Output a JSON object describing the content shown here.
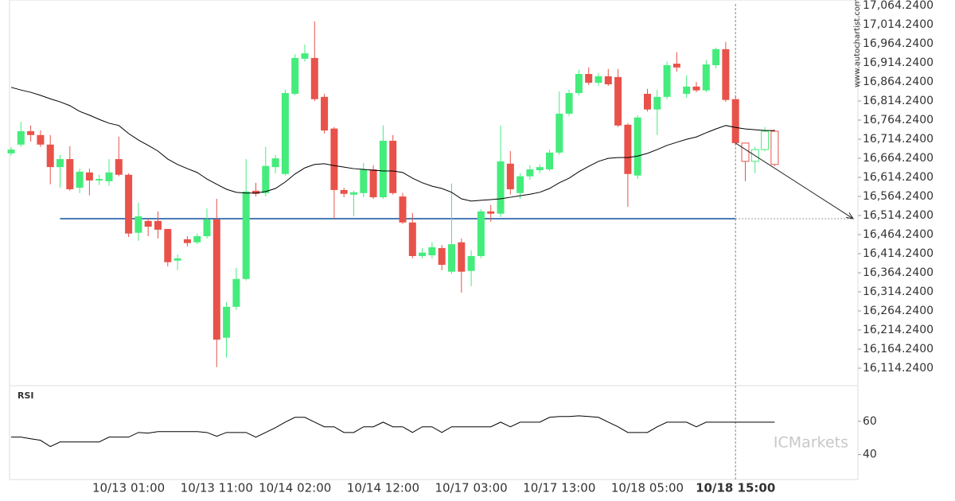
{
  "chart_data": [
    {
      "type": "candlestick",
      "watermark": "www.autochartist.com",
      "categories": [
        null,
        null,
        null,
        null,
        null,
        null,
        null,
        null,
        null,
        null,
        null,
        null,
        "10/13 01:00",
        null,
        null,
        null,
        null,
        null,
        null,
        null,
        null,
        "10/13 11:00",
        null,
        null,
        null,
        null,
        null,
        null,
        null,
        "10/14 02:00",
        null,
        null,
        null,
        null,
        null,
        null,
        null,
        null,
        "10/14 12:00",
        null,
        null,
        null,
        null,
        null,
        null,
        null,
        null,
        "10/17 03:00",
        null,
        null,
        null,
        null,
        null,
        null,
        null,
        null,
        "10/17 13:00",
        null,
        null,
        null,
        null,
        null,
        null,
        null,
        null,
        "10/18 05:00",
        null,
        null,
        null,
        null,
        null,
        null,
        null,
        null,
        "10/18 15:00",
        null,
        null,
        null,
        null
      ],
      "open": [
        16677,
        16700,
        16735,
        16725,
        16700,
        16641,
        16662,
        16587,
        16627,
        16606,
        16604,
        16662,
        16621,
        16469,
        16500,
        16500,
        16479,
        16396,
        16452,
        16444,
        16460,
        16504,
        16194,
        16275,
        16348,
        16579,
        16573,
        16641,
        16623,
        16833,
        16925,
        16927,
        16825,
        16742,
        16581,
        16569,
        16573,
        16635,
        16562,
        16710,
        16564,
        16496,
        16408,
        16410,
        16429,
        16367,
        16444,
        16369,
        16408,
        16525,
        16519,
        16650,
        16573,
        16617,
        16633,
        16635,
        16679,
        16781,
        16835,
        16885,
        16862,
        16879,
        16877,
        16752,
        16619,
        16833,
        16792,
        16825,
        16912,
        16833,
        16852,
        16842,
        16908,
        16950,
        16819,
        16704,
        16656,
        16687,
        16735
      ],
      "high": [
        16694,
        16760,
        16750,
        16737,
        16725,
        16673,
        16696,
        16637,
        16637,
        16621,
        16662,
        16721,
        16625,
        16548,
        16506,
        16525,
        16479,
        16412,
        16460,
        16467,
        16533,
        16558,
        16287,
        16377,
        16662,
        16600,
        16694,
        16673,
        16844,
        16937,
        16962,
        17023,
        16833,
        16746,
        16587,
        16579,
        16652,
        16646,
        16750,
        16725,
        16573,
        16521,
        16429,
        16444,
        16437,
        16598,
        16454,
        16423,
        16531,
        16542,
        16750,
        16683,
        16625,
        16646,
        16648,
        16687,
        16839,
        16844,
        16896,
        16902,
        16887,
        16898,
        16898,
        16756,
        16777,
        16846,
        16844,
        16917,
        16942,
        16881,
        16864,
        16921,
        16954,
        16969,
        16829,
        16704,
        16694,
        16746,
        16739
      ],
      "low": [
        16671,
        16694,
        16708,
        16694,
        16596,
        16587,
        16579,
        16573,
        16567,
        16594,
        16592,
        16617,
        16458,
        16448,
        16460,
        16454,
        16381,
        16371,
        16433,
        16439,
        16454,
        16117,
        16142,
        16267,
        16344,
        16564,
        16564,
        16625,
        16619,
        16829,
        16917,
        16814,
        16729,
        16506,
        16562,
        16512,
        16562,
        16558,
        16558,
        16569,
        16492,
        16402,
        16402,
        16402,
        16371,
        16362,
        16312,
        16329,
        16402,
        16498,
        16510,
        16569,
        16558,
        16608,
        16625,
        16631,
        16673,
        16775,
        16829,
        16856,
        16854,
        16854,
        16746,
        16537,
        16610,
        16787,
        16725,
        16819,
        16891,
        16823,
        16837,
        16837,
        16900,
        16812,
        16698,
        16604,
        16625,
        16683,
        16644
      ],
      "close": [
        16687,
        16735,
        16725,
        16700,
        16641,
        16662,
        16583,
        16629,
        16606,
        16610,
        16627,
        16621,
        16467,
        16512,
        16485,
        16477,
        16392,
        16402,
        16442,
        16460,
        16504,
        16189,
        16275,
        16348,
        16577,
        16571,
        16644,
        16664,
        16835,
        16927,
        16939,
        16819,
        16737,
        16581,
        16571,
        16575,
        16635,
        16562,
        16710,
        16573,
        16496,
        16408,
        16417,
        16431,
        16385,
        16439,
        16367,
        16408,
        16525,
        16519,
        16656,
        16583,
        16617,
        16635,
        16641,
        16679,
        16781,
        16835,
        16885,
        16862,
        16879,
        16858,
        16750,
        16623,
        16771,
        16792,
        16825,
        16908,
        16902,
        16852,
        16842,
        16910,
        16950,
        16817,
        16704,
        16656,
        16687,
        16735,
        16648
      ],
      "up_color": "#44ec7c",
      "down_color": "#e8524a",
      "hollow_count": 4,
      "series": [
        {
          "color": "#000000",
          "values": [
            16850,
            16843,
            16837,
            16829,
            16820,
            16812,
            16802,
            16787,
            16777,
            16766,
            16756,
            16750,
            16729,
            16712,
            16698,
            16683,
            16662,
            16648,
            16637,
            16627,
            16610,
            16596,
            16583,
            16575,
            16573,
            16573,
            16577,
            16585,
            16602,
            16623,
            16639,
            16648,
            16650,
            16645,
            16641,
            16637,
            16635,
            16633,
            16631,
            16631,
            16627,
            16612,
            16600,
            16591,
            16585,
            16575,
            16558,
            16552,
            16554,
            16556,
            16558,
            16562,
            16566,
            16570,
            16575,
            16585,
            16600,
            16612,
            16629,
            16643,
            16656,
            16664,
            16666,
            16666,
            16670,
            16677,
            16687,
            16698,
            16706,
            16714,
            16720,
            16731,
            16741,
            16750,
            16745,
            16741,
            16739,
            16737,
            16737
          ]
        }
      ],
      "level": 16506,
      "level_color": "#4a7bb7",
      "ylim": [
        16078.8,
        17078.8
      ],
      "yticks": [
        {
          "value": 16114.24,
          "label": "16,114.2400"
        },
        {
          "value": 16164.24,
          "label": "16,164.2400"
        },
        {
          "value": 16214.24,
          "label": "16,214.2400"
        },
        {
          "value": 16264.24,
          "label": "16,264.2400"
        },
        {
          "value": 16314.24,
          "label": "16,314.2400"
        },
        {
          "value": 16364.24,
          "label": "16,364.2400"
        },
        {
          "value": 16414.24,
          "label": "16,414.2400"
        },
        {
          "value": 16464.24,
          "label": "16,464.2400"
        },
        {
          "value": 16514.24,
          "label": "16,514.2400"
        },
        {
          "value": 16564.24,
          "label": "16,564.2400"
        },
        {
          "value": 16614.24,
          "label": "16,614.2400"
        },
        {
          "value": 16664.24,
          "label": "16,664.2400"
        },
        {
          "value": 16714.24,
          "label": "16,714.2400"
        },
        {
          "value": 16764.24,
          "label": "16,764.2400"
        },
        {
          "value": 16814.24,
          "label": "16,814.2400"
        },
        {
          "value": 16864.24,
          "label": "16,864.2400"
        },
        {
          "value": 16914.24,
          "label": "16,914.2400"
        },
        {
          "value": 16964.24,
          "label": "16,964.2400"
        },
        {
          "value": 17014.24,
          "label": "17,014.2400"
        },
        {
          "value": 17064.24,
          "label": "17,064.2400"
        }
      ]
    },
    {
      "type": "line",
      "title": "RSI",
      "watermark": "ICMarkets",
      "color": "#000000",
      "values": [
        50.5,
        50.5,
        49.5,
        48.6,
        44.8,
        47.6,
        47.6,
        47.6,
        47.6,
        47.6,
        50.5,
        50.5,
        50.5,
        53.3,
        52.9,
        53.8,
        53.8,
        53.8,
        53.8,
        53.8,
        53.3,
        51,
        53.3,
        53.3,
        53.3,
        50.5,
        53.3,
        56.2,
        59.5,
        62.4,
        62.4,
        59.5,
        56.7,
        56.7,
        53.3,
        53.3,
        56.7,
        56.7,
        59.5,
        56.7,
        56.7,
        53.3,
        56.7,
        56.7,
        53.3,
        56.7,
        56.7,
        56.7,
        56.7,
        56.7,
        59.5,
        56.7,
        59.5,
        59.5,
        59.5,
        62.4,
        62.9,
        62.9,
        63.3,
        62.9,
        62.4,
        59.5,
        56.7,
        53.3,
        53.3,
        53.3,
        56.7,
        59.5,
        59.5,
        59.5,
        56.7,
        59.5,
        59.5,
        59.5,
        59.5,
        59.5,
        59.5,
        59.5,
        59.5
      ],
      "ylim": [
        25,
        80
      ],
      "yticks": [
        40,
        60
      ]
    }
  ]
}
